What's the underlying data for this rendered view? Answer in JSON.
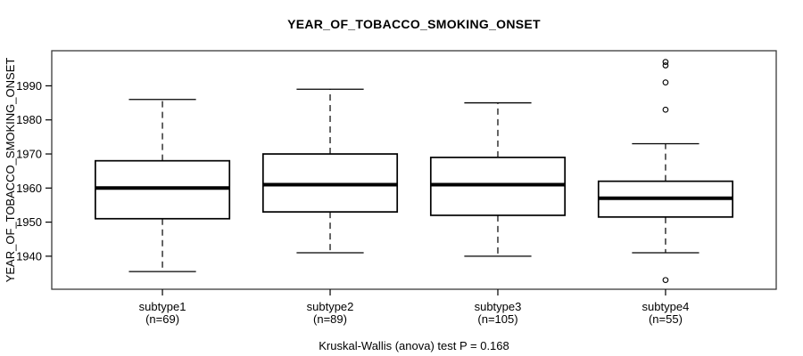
{
  "chart_data": {
    "type": "boxplot",
    "title": "YEAR_OF_TOBACCO_SMOKING_ONSET",
    "ylabel": "YEAR_OF_TOBACCO_SMOKING_ONSET",
    "caption": "Kruskal-Wallis (anova) test P = 0.168",
    "stat_test": "Kruskal-Wallis (anova)",
    "p_value": "0.168",
    "grid": false,
    "legend": "none",
    "ylim": [
      1930.3,
      2000.3
    ],
    "y_ticks": [
      1940,
      1950,
      1960,
      1970,
      1980,
      1990
    ],
    "groups": [
      {
        "label": "subtype1",
        "sublabel": "(n=69)",
        "n": 69,
        "whisker_low": 1935.5,
        "q1": 1951,
        "median": 1960,
        "q3": 1968,
        "whisker_high": 1986,
        "outliers": []
      },
      {
        "label": "subtype2",
        "sublabel": "(n=89)",
        "n": 89,
        "whisker_low": 1941,
        "q1": 1953,
        "median": 1961,
        "q3": 1970,
        "whisker_high": 1989,
        "outliers": []
      },
      {
        "label": "subtype3",
        "sublabel": "(n=105)",
        "n": 105,
        "whisker_low": 1940,
        "q1": 1952,
        "median": 1961,
        "q3": 1969,
        "whisker_high": 1985,
        "outliers": []
      },
      {
        "label": "subtype4",
        "sublabel": "(n=55)",
        "n": 55,
        "whisker_low": 1941,
        "q1": 1951.5,
        "median": 1957,
        "q3": 1962,
        "whisker_high": 1973,
        "outliers": [
          1997,
          1996,
          1991,
          1983,
          1933
        ]
      }
    ]
  },
  "colors": {
    "line": "#000000",
    "frame": "#3a3a3a",
    "box_fill": "#ffffff",
    "background": "#ffffff"
  }
}
